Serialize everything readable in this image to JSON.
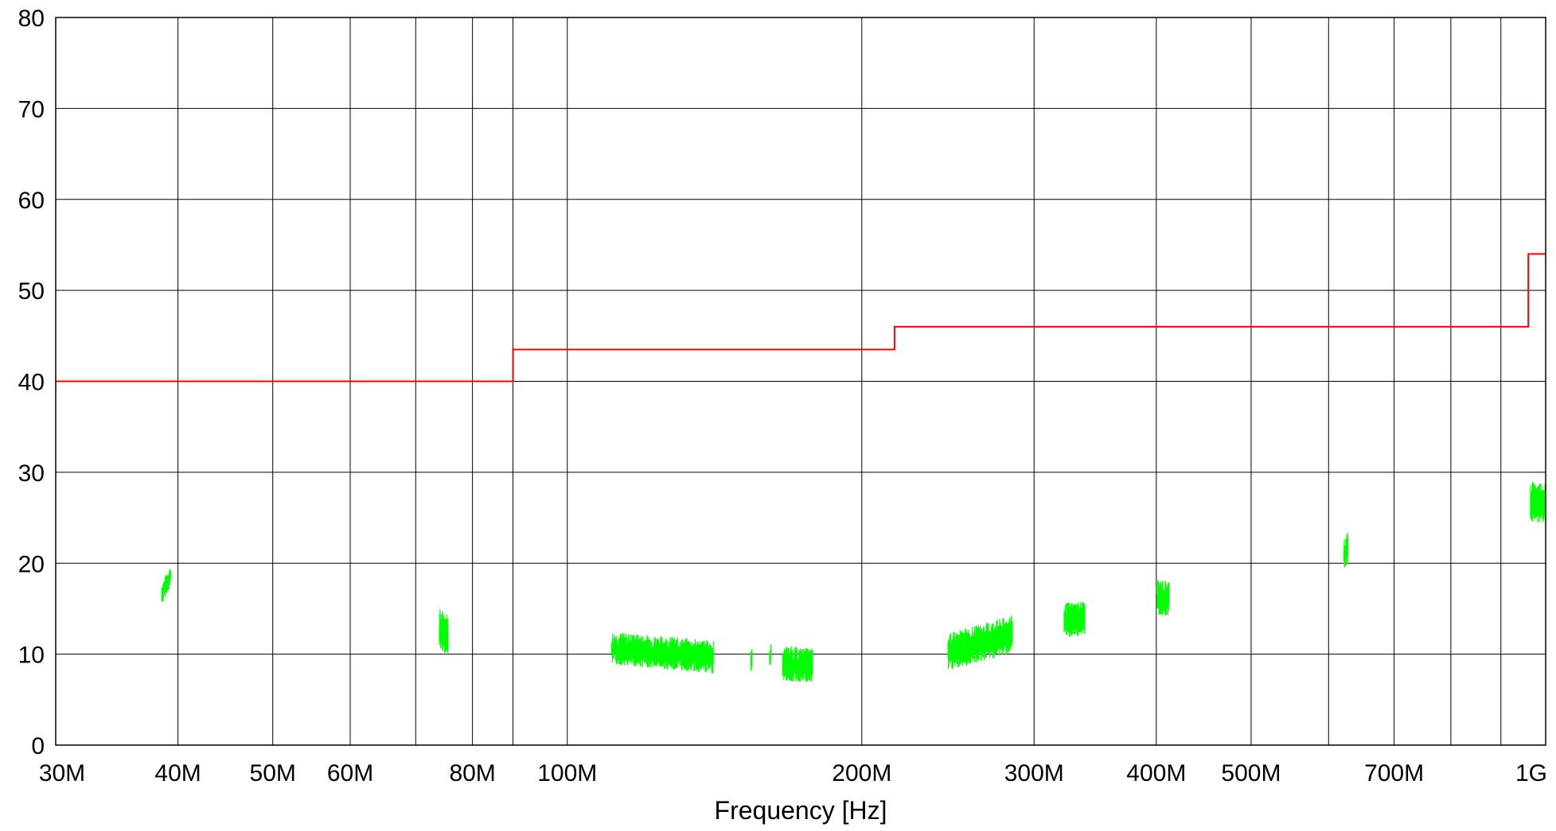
{
  "chart_data": {
    "type": "line",
    "title": "",
    "xlabel": "Frequency [Hz]",
    "ylabel": "",
    "x_scale": "log",
    "xlim": [
      30000000,
      1000000000
    ],
    "ylim": [
      0,
      80
    ],
    "grid": true,
    "y_ticks": [
      {
        "value": 0,
        "label": "0"
      },
      {
        "value": 10,
        "label": "10"
      },
      {
        "value": 20,
        "label": "20"
      },
      {
        "value": 30,
        "label": "30"
      },
      {
        "value": 40,
        "label": "40"
      },
      {
        "value": 50,
        "label": "50"
      },
      {
        "value": 60,
        "label": "60"
      },
      {
        "value": 70,
        "label": "70"
      },
      {
        "value": 80,
        "label": "80"
      }
    ],
    "x_ticks": [
      {
        "value": 30000000,
        "label": "30M"
      },
      {
        "value": 40000000,
        "label": "40M"
      },
      {
        "value": 50000000,
        "label": "50M"
      },
      {
        "value": 60000000,
        "label": "60M"
      },
      {
        "value": 80000000,
        "label": "80M"
      },
      {
        "value": 100000000,
        "label": "100M"
      },
      {
        "value": 200000000,
        "label": "200M"
      },
      {
        "value": 300000000,
        "label": "300M"
      },
      {
        "value": 400000000,
        "label": "400M"
      },
      {
        "value": 500000000,
        "label": "500M"
      },
      {
        "value": 700000000,
        "label": "700M"
      },
      {
        "value": 1000000000,
        "label": "1G"
      }
    ],
    "x_gridlines": [
      40000000,
      50000000,
      60000000,
      70000000,
      80000000,
      88000000,
      100000000,
      200000000,
      300000000,
      400000000,
      500000000,
      600000000,
      700000000,
      800000000,
      900000000,
      1000000000
    ],
    "series": [
      {
        "color": "#ff0000",
        "style": "step",
        "points": [
          [
            30000000,
            40
          ],
          [
            88000000,
            40
          ],
          [
            88000000,
            43.5
          ],
          [
            216000000,
            43.5
          ],
          [
            216000000,
            46
          ],
          [
            960000000,
            46
          ],
          [
            960000000,
            54
          ],
          [
            1000000000,
            54
          ]
        ]
      },
      {
        "color": "#00ff00",
        "style": "noise-bands",
        "bands": [
          {
            "f_start": 38500000,
            "f_end": 39300000,
            "level_start": 16.5,
            "level_end": 18.5,
            "spread": 1.8
          },
          {
            "f_start": 74000000,
            "f_end": 75500000,
            "level_start": 12.5,
            "level_end": 12.0,
            "spread": 3.5
          },
          {
            "f_start": 111000000,
            "f_end": 141000000,
            "level_start": 10.5,
            "level_end": 9.5,
            "spread": 2.8
          },
          {
            "f_start": 154000000,
            "f_end": 154400000,
            "level_start": 9.2,
            "level_end": 9.2,
            "spread": 2.0
          },
          {
            "f_start": 161000000,
            "f_end": 161400000,
            "level_start": 9.8,
            "level_end": 9.8,
            "spread": 1.8
          },
          {
            "f_start": 166000000,
            "f_end": 178000000,
            "level_start": 8.8,
            "level_end": 8.5,
            "spread": 3.0
          },
          {
            "f_start": 245000000,
            "f_end": 285000000,
            "level_start": 10.0,
            "level_end": 12.0,
            "spread": 3.2
          },
          {
            "f_start": 322000000,
            "f_end": 338000000,
            "level_start": 13.5,
            "level_end": 13.8,
            "spread": 3.0
          },
          {
            "f_start": 401000000,
            "f_end": 412000000,
            "level_start": 16.0,
            "level_end": 16.0,
            "spread": 3.0
          },
          {
            "f_start": 622000000,
            "f_end": 628000000,
            "level_start": 21.0,
            "level_end": 21.5,
            "spread": 2.8
          },
          {
            "f_start": 965000000,
            "f_end": 1000000000,
            "level_start": 26.5,
            "level_end": 26.5,
            "spread": 3.5
          }
        ]
      }
    ]
  }
}
